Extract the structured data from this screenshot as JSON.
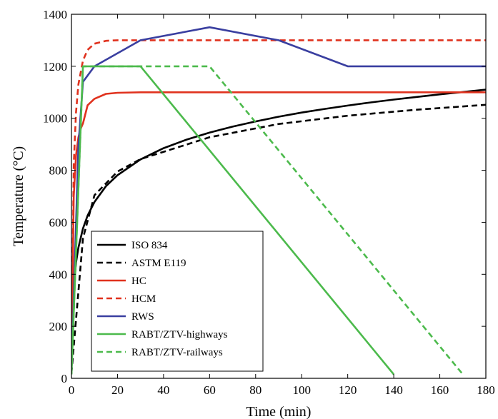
{
  "chart_data": {
    "type": "line",
    "title": "",
    "xlabel": "Time (min)",
    "ylabel": "Temperature (°C)",
    "xlim": [
      0,
      180
    ],
    "ylim": [
      0,
      1400
    ],
    "xticks": [
      0,
      20,
      40,
      60,
      80,
      100,
      120,
      140,
      160,
      180
    ],
    "yticks": [
      0,
      200,
      400,
      600,
      800,
      1000,
      1200,
      1400
    ],
    "grid": false,
    "legend_position": "bottom-left",
    "series": [
      {
        "name": "ISO 834",
        "color": "#000000",
        "dash": "solid",
        "x": [
          0,
          1,
          2,
          3,
          5,
          7,
          10,
          15,
          20,
          30,
          40,
          50,
          60,
          70,
          80,
          90,
          100,
          110,
          120,
          130,
          140,
          150,
          160,
          170,
          180
        ],
        "y": [
          20,
          349,
          445,
          502,
          576,
          626,
          678,
          739,
          781,
          842,
          885,
          918,
          945,
          968,
          988,
          1006,
          1022,
          1036,
          1049,
          1061,
          1072,
          1082,
          1092,
          1101,
          1110
        ]
      },
      {
        "name": "ASTM E119",
        "color": "#000000",
        "dash": "dashed",
        "x": [
          0,
          5,
          10,
          20,
          30,
          60,
          90,
          120,
          150,
          180
        ],
        "y": [
          20,
          538,
          704,
          795,
          843,
          927,
          978,
          1010,
          1033,
          1052
        ]
      },
      {
        "name": "HC",
        "color": "#e0321e",
        "dash": "solid",
        "x": [
          0,
          1,
          2,
          3,
          4,
          5,
          7,
          10,
          15,
          20,
          30,
          60,
          180
        ],
        "y": [
          20,
          700,
          857,
          926,
          960,
          980,
          1050,
          1075,
          1094,
          1098,
          1100,
          1100,
          1100
        ]
      },
      {
        "name": "HCM",
        "color": "#e0321e",
        "dash": "dashed",
        "x": [
          0,
          1,
          2,
          3,
          5,
          7,
          10,
          15,
          20,
          30,
          60,
          180
        ],
        "y": [
          20,
          822,
          1023,
          1130,
          1222,
          1263,
          1287,
          1298,
          1300,
          1300,
          1300,
          1300
        ]
      },
      {
        "name": "RWS",
        "color": "#3a3fa0",
        "dash": "solid",
        "x": [
          0,
          3,
          5,
          10,
          30,
          60,
          90,
          120,
          180
        ],
        "y": [
          20,
          890,
          1140,
          1200,
          1300,
          1350,
          1300,
          1200,
          1200
        ]
      },
      {
        "name": "RABT/ZTV-highways",
        "color": "#4cba4c",
        "dash": "solid",
        "x": [
          0,
          5,
          30,
          140
        ],
        "y": [
          15,
          1200,
          1200,
          15
        ]
      },
      {
        "name": "RABT/ZTV-railways",
        "color": "#4cba4c",
        "dash": "dashed",
        "x": [
          0,
          5,
          60,
          170
        ],
        "y": [
          15,
          1200,
          1200,
          15
        ]
      }
    ]
  }
}
